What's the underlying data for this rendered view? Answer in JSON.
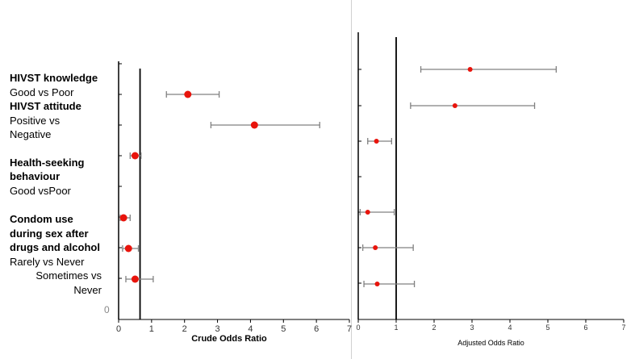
{
  "labels": {
    "hivst_knowledge": "HIVST knowledge",
    "good_vs_poor": "Good vs Poor",
    "hivst_attitude": "HIVST attitude",
    "positive_vs": "Positive vs",
    "negative": "Negative",
    "health_seeking_1": "Health-seeking",
    "health_seeking_2": "behaviour",
    "good_vspoor": "Good vsPoor",
    "condom_1": "Condom use",
    "condom_2": "during sex after",
    "condom_3": "drugs and alcohol",
    "rarely_vs_never": "Rarely vs Never",
    "sometimes_vs": "Sometimes vs",
    "never": "Never",
    "stray_zero": "0"
  },
  "colors": {
    "point": "#e8140c",
    "error_bar": "#808080",
    "axis": "#000000",
    "ref_line": "#000000"
  },
  "chart_data": [
    {
      "type": "scatter",
      "title": "",
      "xlabel": "Crude Odds Ratio",
      "ylabel": "",
      "xlim": [
        0,
        7
      ],
      "xticks": [
        "0",
        "1",
        "2",
        "3",
        "4",
        "5",
        "6",
        "7"
      ],
      "reference_line": 0.65,
      "points": [
        {
          "row": "HIVST knowledge: Good vs Poor",
          "or": 2.1,
          "lower": 1.45,
          "upper": 3.05
        },
        {
          "row": "HIVST attitude: Positive vs Negative",
          "or": 4.12,
          "lower": 2.8,
          "upper": 6.1
        },
        {
          "row": "Health-seeking behaviour: Good vs Poor",
          "or": 0.5,
          "lower": 0.35,
          "upper": 0.68
        },
        {
          "row": "Condom use: Rarely vs Never",
          "or": 0.15,
          "lower": 0.05,
          "upper": 0.35
        },
        {
          "row": "Condom use: Rarely vs Never (b)",
          "or": 0.3,
          "lower": 0.12,
          "upper": 0.6
        },
        {
          "row": "Condom use: Sometimes vs Never",
          "or": 0.5,
          "lower": 0.22,
          "upper": 1.05
        }
      ]
    },
    {
      "type": "scatter",
      "title": "",
      "xlabel": "Adjusted Odds Ratio",
      "ylabel": "",
      "xlim": [
        0,
        7
      ],
      "xticks": [
        "0",
        "1",
        "2",
        "3",
        "4",
        "5",
        "6",
        "7"
      ],
      "reference_line": 1,
      "points": [
        {
          "row": "HIVST knowledge: Good vs Poor",
          "or": 2.95,
          "lower": 1.65,
          "upper": 5.22
        },
        {
          "row": "HIVST attitude: Positive vs Negative",
          "or": 2.55,
          "lower": 1.38,
          "upper": 4.65
        },
        {
          "row": "Health-seeking behaviour: Good vs Poor",
          "or": 0.48,
          "lower": 0.25,
          "upper": 0.88
        },
        {
          "row": "Condom use: Rarely vs Never",
          "or": 0.25,
          "lower": 0.05,
          "upper": 0.95
        },
        {
          "row": "Condom use: Rarely vs Never (b)",
          "or": 0.45,
          "lower": 0.12,
          "upper": 1.45
        },
        {
          "row": "Condom use: Sometimes vs Never",
          "or": 0.5,
          "lower": 0.15,
          "upper": 1.48
        }
      ]
    }
  ]
}
